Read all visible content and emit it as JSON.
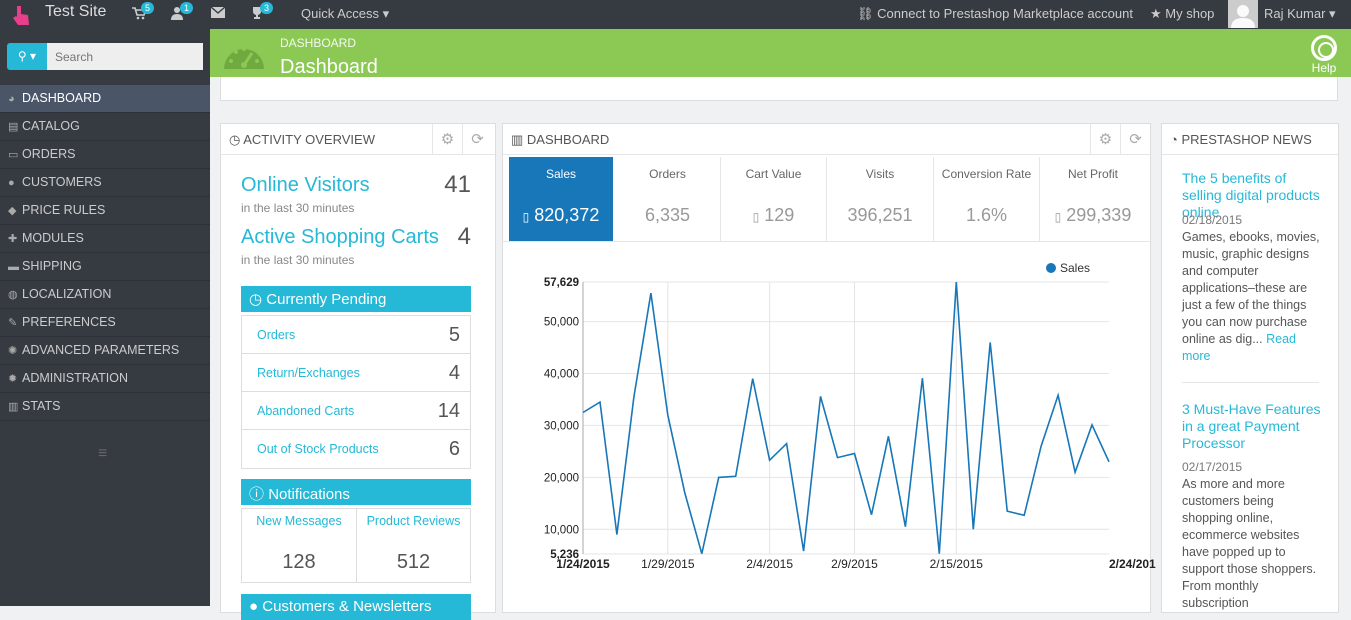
{
  "topbar": {
    "site_name": "Test Site",
    "badges": {
      "orders": "5",
      "customers": "1",
      "trophy": "3"
    },
    "quick_access": "Quick Access",
    "connect": "Connect to Prestashop Marketplace account",
    "my_shop": "My shop",
    "user": "Raj Kumar"
  },
  "sidebar": {
    "search_placeholder": "Search",
    "items": [
      {
        "label": "DASHBOARD",
        "icon": "speedometer-icon"
      },
      {
        "label": "CATALOG",
        "icon": "book-icon"
      },
      {
        "label": "ORDERS",
        "icon": "credit-card-icon"
      },
      {
        "label": "CUSTOMERS",
        "icon": "users-icon"
      },
      {
        "label": "PRICE RULES",
        "icon": "tag-icon"
      },
      {
        "label": "MODULES",
        "icon": "puzzle-icon"
      },
      {
        "label": "SHIPPING",
        "icon": "truck-icon"
      },
      {
        "label": "LOCALIZATION",
        "icon": "globe-icon"
      },
      {
        "label": "PREFERENCES",
        "icon": "wrench-icon"
      },
      {
        "label": "ADVANCED PARAMETERS",
        "icon": "cogs-icon"
      },
      {
        "label": "ADMINISTRATION",
        "icon": "cog-icon"
      },
      {
        "label": "STATS",
        "icon": "bar-chart-icon"
      }
    ]
  },
  "header": {
    "breadcrumb": "DASHBOARD",
    "title": "Dashboard",
    "help": "Help"
  },
  "activity": {
    "title": "ACTIVITY OVERVIEW",
    "online_visitors_label": "Online Visitors",
    "online_visitors_value": "41",
    "online_visitors_sub": "in the last 30 minutes",
    "active_carts_label": "Active Shopping Carts",
    "active_carts_value": "4",
    "active_carts_sub": "in the last 30 minutes",
    "pending_title": "Currently Pending",
    "pending": [
      {
        "label": "Orders",
        "value": "5"
      },
      {
        "label": "Return/Exchanges",
        "value": "4"
      },
      {
        "label": "Abandoned Carts",
        "value": "14"
      },
      {
        "label": "Out of Stock Products",
        "value": "6"
      }
    ],
    "notifications_title": "Notifications",
    "new_messages_label": "New Messages",
    "new_messages_value": "128",
    "product_reviews_label": "Product Reviews",
    "product_reviews_value": "512",
    "customers_title": "Customers & Newsletters"
  },
  "dashboard": {
    "title": "DASHBOARD",
    "kpis": [
      {
        "label": "Sales",
        "value": "820,372"
      },
      {
        "label": "Orders",
        "value": "6,335"
      },
      {
        "label": "Cart Value",
        "value": "129"
      },
      {
        "label": "Visits",
        "value": "396,251"
      },
      {
        "label": "Conversion Rate",
        "value": "1.6%"
      },
      {
        "label": "Net Profit",
        "value": "299,339"
      }
    ]
  },
  "chart_data": {
    "type": "line",
    "series": [
      {
        "name": "Sales",
        "values": [
          32500,
          34500,
          9000,
          35500,
          55500,
          32000,
          17000,
          5300,
          20000,
          20200,
          39000,
          23300,
          26500,
          5800,
          35600,
          23800,
          24600,
          12800,
          27900,
          10500,
          39100,
          5300,
          57629,
          10000,
          46000,
          13500,
          12700,
          26000,
          35800,
          21000,
          30100,
          23000
        ]
      }
    ],
    "x_tick_labels": [
      "1/24/2015",
      "1/29/2015",
      "2/4/2015",
      "2/9/2015",
      "2/15/2015",
      "2/24/201"
    ],
    "y_ticks": [
      5236,
      10000,
      20000,
      30000,
      40000,
      50000,
      57629
    ],
    "y_tick_labels": [
      "5,236",
      "10,000",
      "20,000",
      "30,000",
      "40,000",
      "50,000",
      "57,629"
    ],
    "ylim": [
      5236,
      57629
    ],
    "legend": "top-right",
    "grid": true,
    "color": "#1777b8"
  },
  "news": {
    "title": "PRESTASHOP NEWS",
    "items": [
      {
        "title": "The 5 benefits of selling digital products online",
        "date": "02/18/2015",
        "body": "Games, ebooks, movies, music, graphic designs and computer applications–these are just a few of the things you can now purchase online as dig...",
        "more": "Read more"
      },
      {
        "title": "3 Must-Have Features in a great Payment Processor",
        "date": "02/17/2015",
        "body": "As more and more customers being shopping online, ecommerce websites have popped up to support those shoppers. From monthly subscription"
      }
    ]
  }
}
